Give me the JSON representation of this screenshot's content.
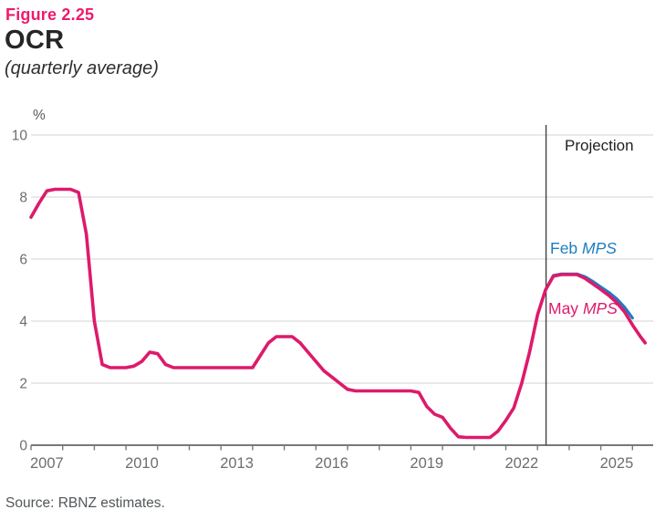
{
  "header": {
    "figure_label": "Figure 2.25",
    "title": "OCR",
    "subtitle": "(quarterly average)"
  },
  "source": "Source: RBNZ estimates.",
  "colors": {
    "accent_pink": "#ee1a6e",
    "line_pink": "#dd1a6b",
    "line_blue": "#1d7dc0",
    "grid": "#dcdcdc",
    "axis": "#77787b",
    "tick_label": "#6d6e71",
    "projection_line": "#404040",
    "projection_text": "#1f1f1f",
    "percent_label": "#58595b"
  },
  "chart_data": {
    "type": "line",
    "title": "OCR",
    "subtitle": "(quarterly average)",
    "xlabel": "",
    "ylabel": "%",
    "ylim": [
      0,
      10
    ],
    "yticks": [
      0,
      2,
      4,
      6,
      8,
      10
    ],
    "xlim": [
      2007,
      2026.65
    ],
    "minor_tick_years": [
      2007,
      2008,
      2009,
      2010,
      2011,
      2012,
      2013,
      2014,
      2015,
      2016,
      2017,
      2018,
      2019,
      2020,
      2021,
      2022,
      2023,
      2024,
      2025,
      2026
    ],
    "xtick_labels": [
      {
        "label": "2007",
        "x": 2007.5
      },
      {
        "label": "2010",
        "x": 2010.5
      },
      {
        "label": "2013",
        "x": 2013.5
      },
      {
        "label": "2016",
        "x": 2016.5
      },
      {
        "label": "2019",
        "x": 2019.5
      },
      {
        "label": "2022",
        "x": 2022.5
      },
      {
        "label": "2025",
        "x": 2025.5
      }
    ],
    "grid": "horizontal-only",
    "legend_position": "inline-annotations",
    "projection": {
      "x": 2023.27,
      "label": "Projection"
    },
    "annotations": [
      {
        "series": "feb_mps",
        "prefix": "Feb ",
        "italic": "MPS"
      },
      {
        "series": "may_mps",
        "prefix": "May ",
        "italic": "MPS"
      }
    ],
    "series": [
      {
        "id": "feb_mps",
        "name": "Feb MPS",
        "color_key": "line_blue",
        "x": [
          2023.25,
          2023.5,
          2023.75,
          2024.0,
          2024.25,
          2024.5,
          2024.75,
          2025.0,
          2025.25,
          2025.5,
          2025.75,
          2026.0
        ],
        "values": [
          5.0,
          5.47,
          5.52,
          5.52,
          5.52,
          5.43,
          5.28,
          5.1,
          4.93,
          4.72,
          4.45,
          4.1
        ]
      },
      {
        "id": "may_mps",
        "name": "May MPS",
        "color_key": "line_pink",
        "x": [
          2007.0,
          2007.25,
          2007.5,
          2007.75,
          2008.0,
          2008.25,
          2008.5,
          2008.75,
          2009.0,
          2009.25,
          2009.5,
          2009.75,
          2010.0,
          2010.25,
          2010.5,
          2010.75,
          2011.0,
          2011.25,
          2011.5,
          2011.75,
          2012.0,
          2012.25,
          2012.5,
          2012.75,
          2013.0,
          2013.25,
          2013.5,
          2013.75,
          2014.0,
          2014.25,
          2014.5,
          2014.75,
          2015.0,
          2015.25,
          2015.5,
          2015.75,
          2016.0,
          2016.25,
          2016.5,
          2016.75,
          2017.0,
          2017.25,
          2017.5,
          2017.75,
          2018.0,
          2018.25,
          2018.5,
          2018.75,
          2019.0,
          2019.25,
          2019.5,
          2019.75,
          2020.0,
          2020.25,
          2020.5,
          2020.75,
          2021.0,
          2021.25,
          2021.5,
          2021.75,
          2022.0,
          2022.25,
          2022.5,
          2022.75,
          2023.0,
          2023.25,
          2023.5,
          2023.75,
          2024.0,
          2024.25,
          2024.5,
          2024.75,
          2025.0,
          2025.25,
          2025.5,
          2025.75,
          2026.0,
          2026.25,
          2026.4
        ],
        "values": [
          7.35,
          7.8,
          8.2,
          8.25,
          8.25,
          8.25,
          8.15,
          6.8,
          4.0,
          2.6,
          2.5,
          2.5,
          2.5,
          2.55,
          2.7,
          3.0,
          2.95,
          2.6,
          2.5,
          2.5,
          2.5,
          2.5,
          2.5,
          2.5,
          2.5,
          2.5,
          2.5,
          2.5,
          2.5,
          2.9,
          3.3,
          3.5,
          3.5,
          3.5,
          3.3,
          3.0,
          2.7,
          2.4,
          2.2,
          2.0,
          1.8,
          1.75,
          1.75,
          1.75,
          1.75,
          1.75,
          1.75,
          1.75,
          1.75,
          1.7,
          1.25,
          1.0,
          0.9,
          0.55,
          0.27,
          0.25,
          0.25,
          0.25,
          0.25,
          0.45,
          0.8,
          1.2,
          2.0,
          3.0,
          4.2,
          5.0,
          5.45,
          5.5,
          5.5,
          5.5,
          5.38,
          5.2,
          5.02,
          4.83,
          4.6,
          4.3,
          3.88,
          3.5,
          3.3
        ]
      }
    ]
  }
}
